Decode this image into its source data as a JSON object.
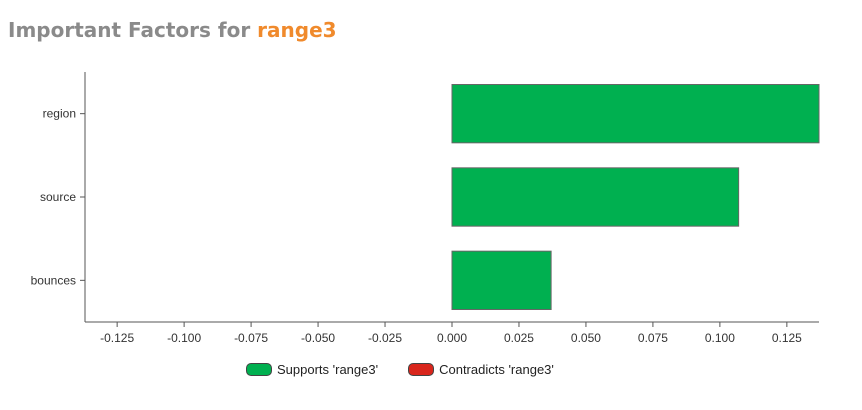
{
  "title": {
    "prefix": "Important Factors for ",
    "target": "range3"
  },
  "colors": {
    "supports": "#00b050",
    "contradicts": "#d9261c",
    "title_gray": "#8a8a8a",
    "title_accent": "#f08a2c"
  },
  "legend": {
    "supports_label": "Supports 'range3'",
    "contradicts_label": "Contradicts 'range3'"
  },
  "chart_data": {
    "type": "bar",
    "orientation": "horizontal",
    "categories": [
      "region",
      "source",
      "bounces"
    ],
    "values": [
      0.137,
      0.107,
      0.037
    ],
    "xlim": [
      -0.137,
      0.137
    ],
    "xticks": [
      -0.125,
      -0.1,
      -0.075,
      -0.05,
      -0.025,
      0.0,
      0.025,
      0.05,
      0.075,
      0.1,
      0.125
    ],
    "xtick_labels": [
      "-0.125",
      "-0.100",
      "-0.075",
      "-0.050",
      "-0.025",
      "0.000",
      "0.025",
      "0.050",
      "0.075",
      "0.100",
      "0.125"
    ],
    "grid": false,
    "legend_position": "bottom"
  }
}
